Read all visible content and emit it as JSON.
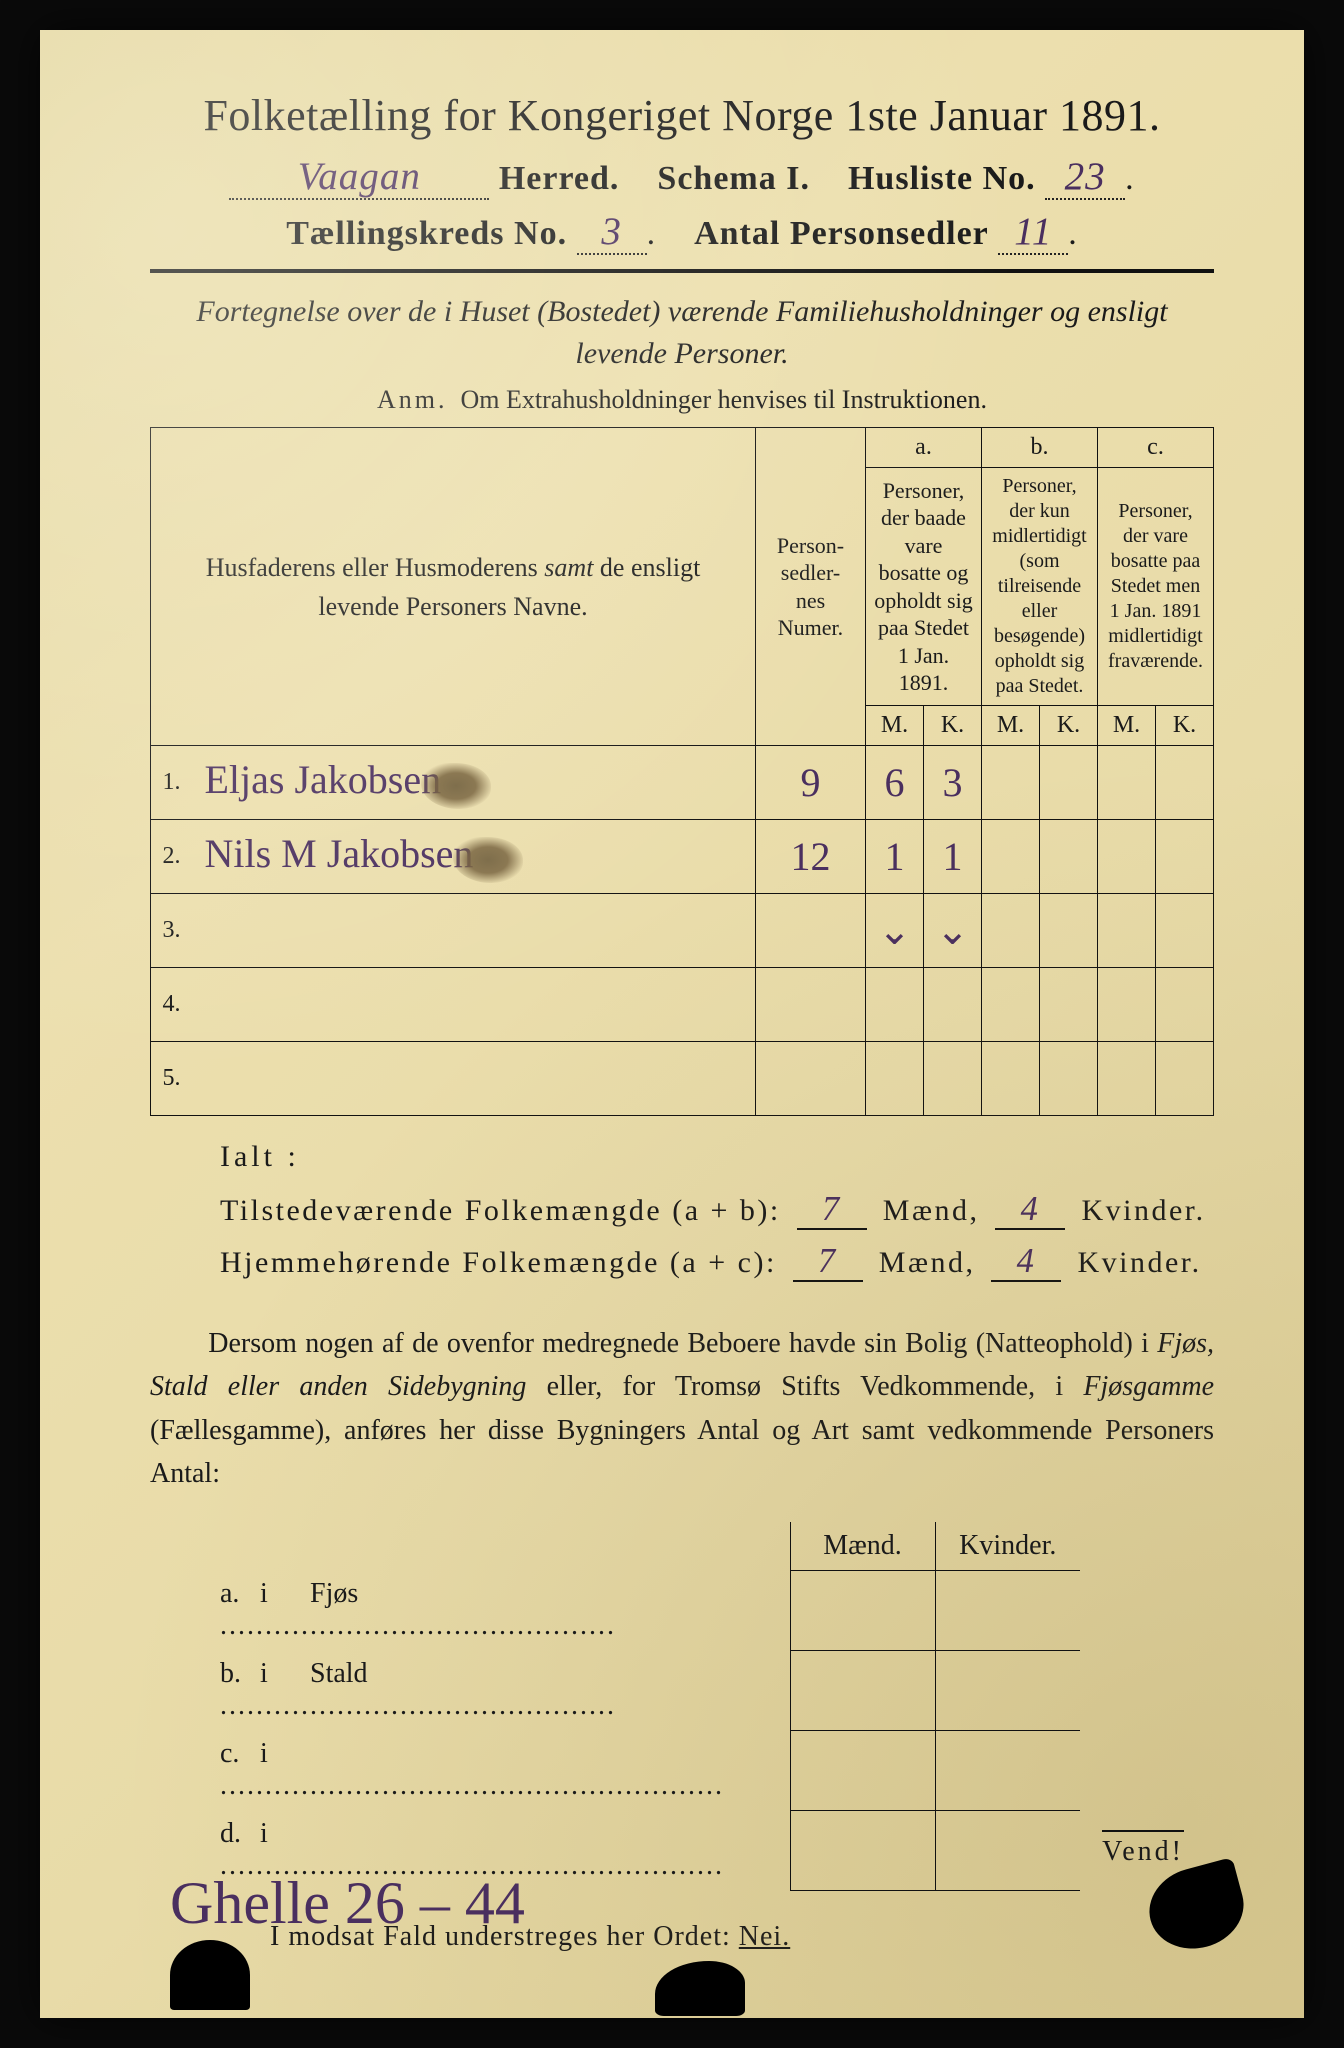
{
  "colors": {
    "paper": "#e8dba8",
    "ink": "#1a1a1a",
    "handwriting": "#4a2f5f",
    "smudge": "#6b5a3a",
    "page_bg": "#0a0a0a"
  },
  "typography": {
    "title_fontsize_pt": 33,
    "body_fontsize_pt": 21,
    "handwriting_font": "cursive",
    "print_font": "serif"
  },
  "header": {
    "title": "Folketælling for Kongeriget Norge 1ste Januar 1891.",
    "herred_value": "Vaagan",
    "herred_label": "Herred.",
    "schema_label": "Schema I.",
    "husliste_label": "Husliste No.",
    "husliste_value": "23",
    "kreds_label": "Tællingskreds No.",
    "kreds_value": "3",
    "personsedler_label": "Antal Personsedler",
    "personsedler_value": "11"
  },
  "intro": {
    "line1": "Fortegnelse over de i Huset (Bostedet) værende Familiehusholdninger og ensligt",
    "line2": "levende Personer.",
    "anm_label": "Anm.",
    "anm_text": "Om Extrahusholdninger henvises til Instruktionen."
  },
  "main_table": {
    "col_name": "Husfaderens eller Husmoderens samt de ensligt levende Personers Navne.",
    "col_num": "Person-\nsedler-\nnes\nNumer.",
    "col_a_head": "a.",
    "col_a_text": "Personer, der baade vare bosatte og opholdt sig paa Stedet 1 Jan. 1891.",
    "col_b_head": "b.",
    "col_b_text": "Personer, der kun midlertidigt (som tilreisende eller besøgende) opholdt sig paa Stedet.",
    "col_c_head": "c.",
    "col_c_text": "Personer, der vare bosatte paa Stedet men 1 Jan. 1891 midlertidigt fraværende.",
    "m": "M.",
    "k": "K.",
    "rows": [
      {
        "n": "1.",
        "name": "Eljas Jakobsen",
        "num": "9",
        "a_m": "6",
        "a_k": "3",
        "b_m": "",
        "b_k": "",
        "c_m": "",
        "c_k": ""
      },
      {
        "n": "2.",
        "name": "Nils M Jakobsen",
        "num": "12",
        "a_m": "1",
        "a_k": "1",
        "b_m": "",
        "b_k": "",
        "c_m": "",
        "c_k": ""
      },
      {
        "n": "3.",
        "name": "",
        "num": "",
        "a_m": "⌄",
        "a_k": "⌄",
        "b_m": "",
        "b_k": "",
        "c_m": "",
        "c_k": ""
      },
      {
        "n": "4.",
        "name": "",
        "num": "",
        "a_m": "",
        "a_k": "",
        "b_m": "",
        "b_k": "",
        "c_m": "",
        "c_k": ""
      },
      {
        "n": "5.",
        "name": "",
        "num": "",
        "a_m": "",
        "a_k": "",
        "b_m": "",
        "b_k": "",
        "c_m": "",
        "c_k": ""
      }
    ]
  },
  "totals": {
    "ialt": "Ialt :",
    "line1_label": "Tilstedeværende Folkemængde (a + b):",
    "line2_label": "Hjemmehørende Folkemængde (a + c):",
    "maend": "Mænd,",
    "kvinder": "Kvinder.",
    "present_m": "7",
    "present_k": "4",
    "home_m": "7",
    "home_k": "4"
  },
  "paragraph": {
    "t1": "Dersom nogen af de ovenfor medregnede Beboere havde sin Bolig (Natteophold) i ",
    "i1": "Fjøs, Stald eller anden Sidebygning",
    "t2": " eller, for Tromsø Stifts Vedkommende, i ",
    "i2": "Fjøsgamme",
    "t3": " (Fællesgamme), anføres her disse Bygningers Antal og Art samt vedkommende Personers Antal:"
  },
  "sub_table": {
    "maend": "Mænd.",
    "kvinder": "Kvinder.",
    "rows": [
      {
        "k": "a.",
        "i": "i",
        "label": "Fjøs"
      },
      {
        "k": "b.",
        "i": "i",
        "label": "Stald"
      },
      {
        "k": "c.",
        "i": "i",
        "label": ""
      },
      {
        "k": "d.",
        "i": "i",
        "label": ""
      }
    ]
  },
  "nei_line": {
    "text": "I modsat Fald understreges her Ordet:",
    "nei": "Nei."
  },
  "vend": "Vend!",
  "bottom_note": "Ghelle 26 – 44"
}
